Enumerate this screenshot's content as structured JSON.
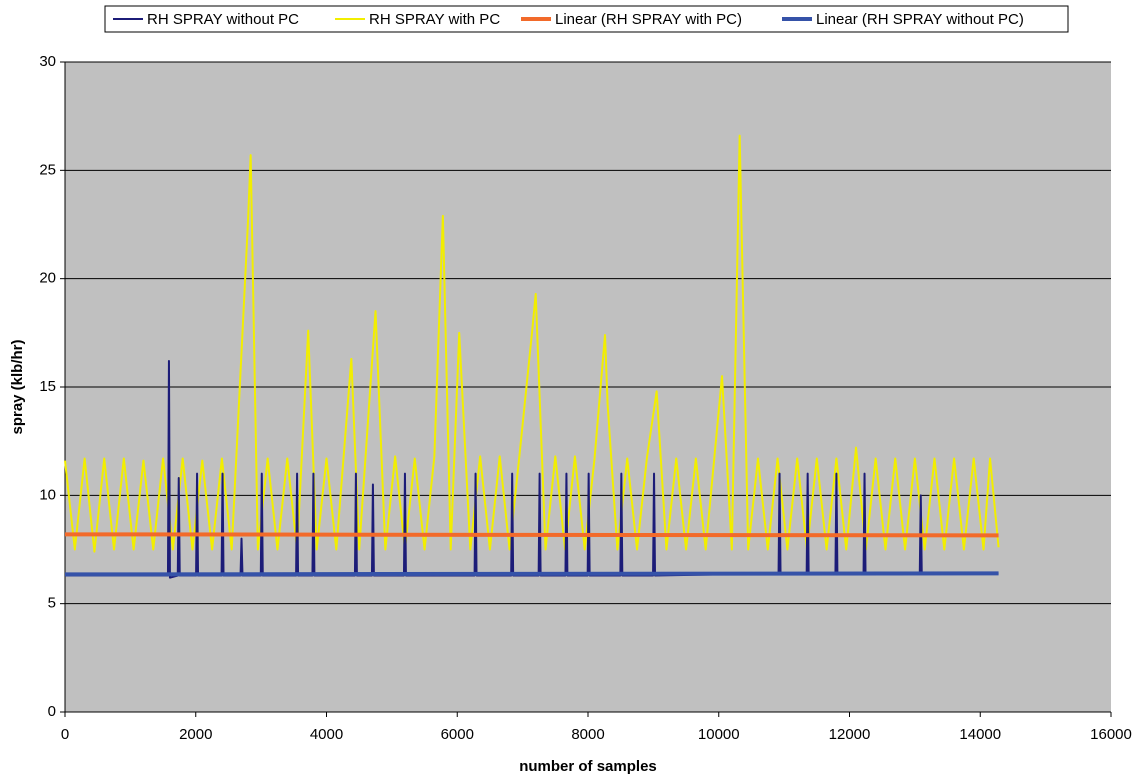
{
  "chart_data": {
    "type": "line",
    "x_label": "number of samples",
    "y_label": "spray (klb/hr)",
    "xlim": [
      0,
      16000
    ],
    "xticks": [
      0,
      2000,
      4000,
      6000,
      8000,
      10000,
      12000,
      14000,
      16000
    ],
    "ylim": [
      0,
      30
    ],
    "yticks": [
      0,
      5,
      10,
      15,
      20,
      25,
      30
    ],
    "grid": true,
    "legend": "top",
    "background": "#c0c0c0",
    "series": [
      {
        "name": "RH SPRAY without PC",
        "color": "#1c1c78",
        "width": 2,
        "x": [
          0,
          1575,
          1590,
          1605,
          1725,
          1740,
          1755,
          2005,
          2020,
          2035,
          2395,
          2410,
          2425,
          2685,
          2700,
          2715,
          2995,
          3010,
          3025,
          3535,
          3550,
          3565,
          3785,
          3800,
          3815,
          4435,
          4450,
          4465,
          4695,
          4710,
          4725,
          5185,
          5200,
          5215,
          6265,
          6280,
          6295,
          6825,
          6840,
          6855,
          7245,
          7260,
          7275,
          7655,
          7670,
          7685,
          7995,
          8010,
          8025,
          8495,
          8510,
          8525,
          8995,
          9010,
          9025,
          10915,
          10930,
          10945,
          11345,
          11360,
          11375,
          11785,
          11800,
          11815,
          12215,
          12230,
          12245,
          13075,
          13090,
          13105,
          14280
        ],
        "values": [
          6.3,
          6.3,
          16.2,
          6.2,
          6.3,
          10.8,
          6.3,
          6.3,
          11,
          6.3,
          6.3,
          11,
          6.3,
          6.3,
          8,
          6.3,
          6.3,
          11,
          6.3,
          6.3,
          11,
          6.3,
          6.3,
          11,
          6.3,
          6.3,
          11,
          6.3,
          6.3,
          10.5,
          6.3,
          6.3,
          11,
          6.3,
          6.3,
          11,
          6.3,
          6.3,
          11,
          6.3,
          6.3,
          11,
          6.3,
          6.3,
          11,
          6.3,
          6.3,
          11,
          6.3,
          6.3,
          11,
          6.3,
          6.3,
          11,
          6.3,
          6.4,
          11,
          6.4,
          6.4,
          11,
          6.4,
          6.4,
          11,
          6.4,
          6.4,
          11,
          6.4,
          6.4,
          10,
          6.4,
          6.4
        ]
      },
      {
        "name": "RH SPRAY with PC",
        "color": "#f2ee00",
        "width": 2,
        "x": [
          0,
          150,
          300,
          450,
          600,
          750,
          900,
          1050,
          1200,
          1350,
          1500,
          1650,
          1800,
          1950,
          2100,
          2250,
          2400,
          2550,
          2700,
          2800,
          2840,
          2950,
          3100,
          3250,
          3400,
          3550,
          3720,
          3850,
          4000,
          4150,
          4380,
          4500,
          4700,
          4750,
          4900,
          5050,
          5200,
          5350,
          5500,
          5650,
          5780,
          5900,
          6030,
          6200,
          6350,
          6500,
          6650,
          6800,
          6950,
          7150,
          7200,
          7350,
          7500,
          7650,
          7800,
          7950,
          8100,
          8260,
          8300,
          8450,
          8600,
          8750,
          8900,
          9050,
          9200,
          9350,
          9500,
          9650,
          9800,
          10050,
          10200,
          10320,
          10450,
          10600,
          10750,
          10900,
          11050,
          11200,
          11350,
          11500,
          11650,
          11800,
          11950,
          12100,
          12250,
          12400,
          12550,
          12700,
          12850,
          13000,
          13150,
          13300,
          13450,
          13600,
          13750,
          13900,
          14050,
          14150,
          14280
        ],
        "values": [
          11.6,
          7.5,
          11.7,
          7.4,
          11.7,
          7.5,
          11.7,
          7.5,
          11.6,
          7.5,
          11.7,
          7.5,
          11.7,
          7.5,
          11.6,
          7.5,
          11.7,
          7.5,
          16.6,
          22.7,
          25.7,
          7.5,
          11.7,
          7.5,
          11.7,
          7.5,
          17.6,
          7.5,
          11.7,
          7.5,
          16.3,
          7.5,
          16.3,
          18.5,
          7.5,
          11.8,
          7.5,
          11.7,
          7.5,
          11.8,
          22.9,
          7.5,
          17.5,
          7.5,
          11.8,
          7.5,
          11.8,
          7.5,
          11.8,
          17.7,
          19.3,
          7.5,
          11.8,
          7.5,
          11.8,
          7.5,
          11.7,
          17.4,
          14.2,
          7.5,
          11.7,
          7.5,
          11.7,
          14.8,
          7.5,
          11.7,
          7.5,
          11.7,
          7.5,
          15.5,
          7.5,
          26.6,
          7.5,
          11.7,
          7.5,
          11.7,
          7.5,
          11.7,
          7.5,
          11.7,
          7.5,
          11.7,
          7.5,
          12.2,
          7.5,
          11.7,
          7.5,
          11.7,
          7.5,
          11.7,
          7.5,
          11.7,
          7.5,
          11.7,
          7.5,
          11.7,
          7.5,
          11.7,
          7.6
        ]
      },
      {
        "name": "Linear (RH SPRAY with PC)",
        "color": "#f26a2a",
        "width": 4,
        "x": [
          0,
          14280
        ],
        "values": [
          8.2,
          8.15
        ]
      },
      {
        "name": "Linear (RH SPRAY without PC)",
        "color": "#3552a8",
        "width": 4,
        "x": [
          0,
          14280
        ],
        "values": [
          6.35,
          6.4
        ]
      }
    ]
  }
}
